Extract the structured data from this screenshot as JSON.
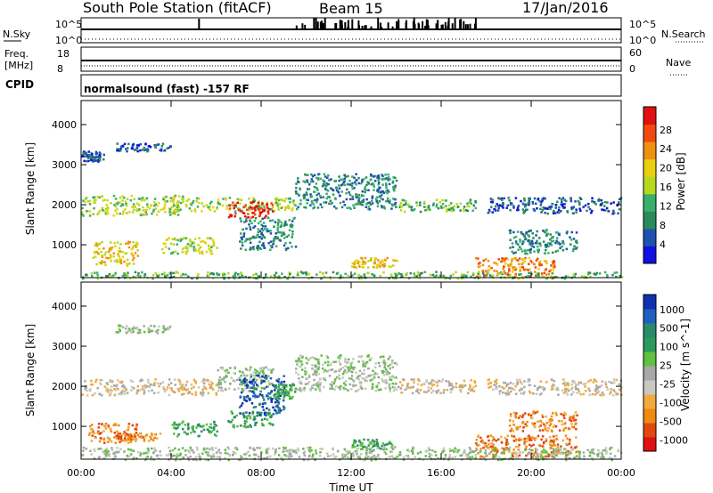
{
  "header": {
    "station": "South Pole Station (fitACF)",
    "beam": "Beam 15",
    "date": "17/Jan/2016"
  },
  "strip_labels": {
    "nsky": "N.Sky",
    "nsky_top": "10^5",
    "nsky_bottom": "10^0",
    "nsearch": "N.Search",
    "nsearch_top": "10^5",
    "nsearch_bottom": "10^0",
    "freq": "Freq.",
    "freq_unit": "[MHz]",
    "freq_top": "18",
    "freq_bottom": "8",
    "nave": "Nave",
    "nave_top": "60",
    "nave_bottom": "0",
    "cpid": "CPID",
    "cpid_text": "normalsound (fast) -157 RF"
  },
  "x_axis": {
    "label": "Time UT",
    "ticks": [
      "00:00",
      "04:00",
      "08:00",
      "12:00",
      "16:00",
      "20:00",
      "00:00"
    ]
  },
  "colors": {
    "power": [
      "#1010e0",
      "#2050b0",
      "#2a8a5a",
      "#38b06a",
      "#b8d820",
      "#e8d010",
      "#f09010",
      "#f04a10",
      "#e01010"
    ],
    "velocity": [
      "#e01010",
      "#e04810",
      "#f08a10",
      "#f0aa40",
      "#c8c8c0",
      "#a8a8a8",
      "#60c040",
      "#2a9a5a",
      "#2a8a6a",
      "#2060c0",
      "#1030b0"
    ]
  },
  "chart_data": [
    {
      "type": "heatmap",
      "name": "power-panel",
      "ylabel": "Slant Range [km]",
      "xlabel": "",
      "xlim": [
        0,
        24
      ],
      "ylim": [
        180,
        4600
      ],
      "yticks": [
        "1000",
        "2000",
        "3000",
        "4000"
      ],
      "colorbar": {
        "label": "Power [dB]",
        "ticks": [
          "4",
          "8",
          "12",
          "16",
          "20",
          "24",
          "28"
        ]
      },
      "regions": [
        {
          "t0": 0.0,
          "t1": 4.5,
          "r0": 1750,
          "r1": 2250,
          "level": 4
        },
        {
          "t0": 4.0,
          "t1": 9.5,
          "r0": 1850,
          "r1": 2200,
          "level": 4
        },
        {
          "t0": 6.5,
          "t1": 8.5,
          "r0": 1700,
          "r1": 2100,
          "level": 8
        },
        {
          "t0": 9.5,
          "t1": 14.0,
          "r0": 1900,
          "r1": 2800,
          "level": 2
        },
        {
          "t0": 14.0,
          "t1": 17.5,
          "r0": 1850,
          "r1": 2150,
          "level": 3
        },
        {
          "t0": 18.0,
          "t1": 24.0,
          "r0": 1800,
          "r1": 2200,
          "level": 1
        },
        {
          "t0": 0.5,
          "t1": 2.5,
          "r0": 500,
          "r1": 1100,
          "level": 5
        },
        {
          "t0": 3.5,
          "t1": 6.0,
          "r0": 800,
          "r1": 1200,
          "level": 4
        },
        {
          "t0": 7.0,
          "t1": 9.5,
          "r0": 900,
          "r1": 1700,
          "level": 2
        },
        {
          "t0": 12.0,
          "t1": 14.0,
          "r0": 450,
          "r1": 700,
          "level": 5
        },
        {
          "t0": 17.5,
          "t1": 21.0,
          "r0": 200,
          "r1": 700,
          "level": 6
        },
        {
          "t0": 19.0,
          "t1": 22.0,
          "r0": 800,
          "r1": 1400,
          "level": 2
        },
        {
          "t0": 0.0,
          "t1": 24.0,
          "r0": 180,
          "r1": 350,
          "level": 3
        },
        {
          "t0": 1.5,
          "t1": 4.0,
          "r0": 3350,
          "r1": 3550,
          "level": 1
        },
        {
          "t0": 0.0,
          "t1": 1.0,
          "r0": 3100,
          "r1": 3350,
          "level": 1
        }
      ]
    },
    {
      "type": "heatmap",
      "name": "velocity-panel",
      "ylabel": "Slant Range [km]",
      "xlabel": "Time UT",
      "xlim": [
        0,
        24
      ],
      "ylim": [
        180,
        4600
      ],
      "yticks": [
        "1000",
        "2000",
        "3000",
        "4000"
      ],
      "colorbar": {
        "label": "Velocity [m s^-1]",
        "ticks": [
          "1000",
          "500",
          "100",
          "25",
          "-25",
          "-100",
          "-500",
          "-1000"
        ]
      },
      "regions": [
        {
          "t0": 0.0,
          "t1": 6.0,
          "r0": 1800,
          "r1": 2200,
          "level": 4
        },
        {
          "t0": 6.0,
          "t1": 8.5,
          "r0": 1900,
          "r1": 2500,
          "level": 5
        },
        {
          "t0": 7.0,
          "t1": 9.0,
          "r0": 1300,
          "r1": 2300,
          "level": 9
        },
        {
          "t0": 8.5,
          "t1": 9.5,
          "r0": 1700,
          "r1": 2100,
          "level": 7
        },
        {
          "t0": 9.5,
          "t1": 14.0,
          "r0": 1900,
          "r1": 2800,
          "level": 5
        },
        {
          "t0": 14.0,
          "t1": 17.5,
          "r0": 1850,
          "r1": 2200,
          "level": 4
        },
        {
          "t0": 18.0,
          "t1": 24.0,
          "r0": 1800,
          "r1": 2200,
          "level": 4
        },
        {
          "t0": 0.3,
          "t1": 2.5,
          "r0": 600,
          "r1": 1100,
          "level": 2
        },
        {
          "t0": 1.5,
          "t1": 3.5,
          "r0": 650,
          "r1": 850,
          "level": 2
        },
        {
          "t0": 4.0,
          "t1": 6.0,
          "r0": 750,
          "r1": 1150,
          "level": 7
        },
        {
          "t0": 6.5,
          "t1": 8.5,
          "r0": 1000,
          "r1": 1400,
          "level": 7
        },
        {
          "t0": 12.0,
          "t1": 14.0,
          "r0": 450,
          "r1": 700,
          "level": 7
        },
        {
          "t0": 17.5,
          "t1": 22.0,
          "r0": 250,
          "r1": 800,
          "level": 2
        },
        {
          "t0": 19.0,
          "t1": 22.0,
          "r0": 900,
          "r1": 1400,
          "level": 2
        },
        {
          "t0": 0.0,
          "t1": 24.0,
          "r0": 180,
          "r1": 500,
          "level": 5
        },
        {
          "t0": 1.5,
          "t1": 4.0,
          "r0": 3350,
          "r1": 3550,
          "level": 5
        }
      ]
    }
  ]
}
